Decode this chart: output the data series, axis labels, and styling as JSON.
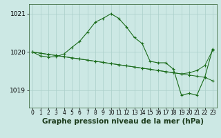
{
  "title": "Graphe pression niveau de la mer (hPa)",
  "bg_color": "#cce8e4",
  "grid_color": "#aacfca",
  "line_color": "#1a6b1a",
  "marker_color": "#1a6b1a",
  "xlim": [
    -0.5,
    23.5
  ],
  "ylim": [
    1018.55,
    1021.25
  ],
  "yticks": [
    1019,
    1020,
    1021
  ],
  "xticks": [
    0,
    1,
    2,
    3,
    4,
    5,
    6,
    7,
    8,
    9,
    10,
    11,
    12,
    13,
    14,
    15,
    16,
    17,
    18,
    19,
    20,
    21,
    22,
    23
  ],
  "series1_x": [
    0,
    1,
    2,
    3,
    4,
    5,
    6,
    7,
    8,
    9,
    10,
    11,
    12,
    13,
    14,
    15,
    16,
    17,
    18,
    19,
    20,
    21,
    22,
    23
  ],
  "series1_y": [
    1020.0,
    1019.97,
    1019.94,
    1019.91,
    1019.88,
    1019.85,
    1019.82,
    1019.79,
    1019.76,
    1019.73,
    1019.7,
    1019.67,
    1019.64,
    1019.61,
    1019.58,
    1019.55,
    1019.52,
    1019.49,
    1019.46,
    1019.43,
    1019.4,
    1019.37,
    1019.34,
    1019.25
  ],
  "series2_x": [
    0,
    1,
    2,
    3,
    4,
    5,
    6,
    7,
    8,
    9,
    10,
    11,
    12,
    13,
    14,
    15,
    16,
    17,
    18,
    19,
    20,
    21,
    22,
    23
  ],
  "series2_y": [
    1020.0,
    1019.97,
    1019.94,
    1019.91,
    1019.88,
    1019.85,
    1019.82,
    1019.79,
    1019.76,
    1019.73,
    1019.7,
    1019.67,
    1019.64,
    1019.61,
    1019.58,
    1019.55,
    1019.52,
    1019.49,
    1019.46,
    1019.43,
    1019.46,
    1019.52,
    1019.65,
    1020.05
  ],
  "series3_x": [
    0,
    1,
    2,
    3,
    4,
    5,
    6,
    7,
    8,
    9,
    10,
    11,
    12,
    13,
    14,
    15,
    16,
    17,
    18,
    19,
    20,
    21,
    22,
    23
  ],
  "series3_y": [
    1020.0,
    1019.9,
    1019.87,
    1019.88,
    1019.95,
    1020.12,
    1020.28,
    1020.52,
    1020.78,
    1020.88,
    1021.0,
    1020.88,
    1020.65,
    1020.38,
    1020.22,
    1019.76,
    1019.72,
    1019.72,
    1019.55,
    1018.88,
    1018.92,
    1018.88,
    1019.35,
    1020.08
  ],
  "xlabel_fontsize": 5.5,
  "ylabel_fontsize": 6.5,
  "title_fontsize": 7.5
}
